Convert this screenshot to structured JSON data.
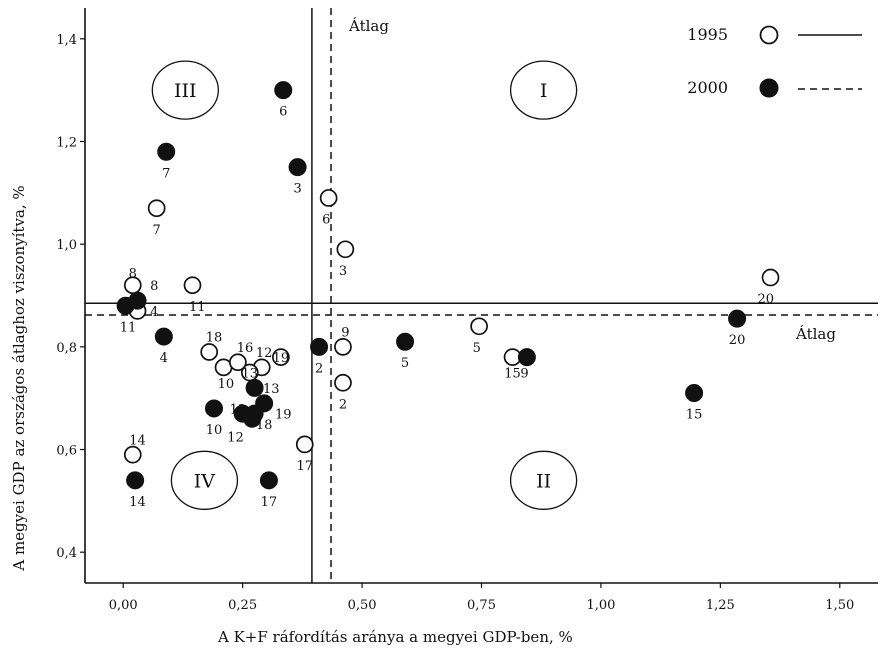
{
  "chart_data": {
    "type": "scatter",
    "xlabel": "A K+F ráfordítás aránya a megyei GDP-ben, %",
    "ylabel": "A megyei GDP az országos átlaghoz viszonyítva, %",
    "xlim": [
      -0.08,
      1.58
    ],
    "ylim": [
      0.34,
      1.46
    ],
    "x_ticks": [
      "0,00",
      "0,25",
      "0,50",
      "0,75",
      "1,00",
      "1,25",
      "1,50"
    ],
    "x_tick_values": [
      0,
      0.25,
      0.5,
      0.75,
      1.0,
      1.25,
      1.5
    ],
    "y_ticks": [
      "0,4",
      "0,6",
      "0,8",
      "1,0",
      "1,2",
      "1,4"
    ],
    "y_tick_values": [
      0.4,
      0.6,
      0.8,
      1.0,
      1.2,
      1.4
    ],
    "grid": false,
    "legend_position": "top-right",
    "average_label": "Átlag",
    "quadrants": [
      {
        "label": "I",
        "x": 0.88,
        "y": 1.3
      },
      {
        "label": "II",
        "x": 0.88,
        "y": 0.54
      },
      {
        "label": "III",
        "x": 0.13,
        "y": 1.3
      },
      {
        "label": "IV",
        "x": 0.17,
        "y": 0.54
      }
    ],
    "series": [
      {
        "name": "1995",
        "marker": "open-circle",
        "line_style": "solid",
        "color": "#111111",
        "average": {
          "x": 0.395,
          "y": 0.885
        },
        "points": [
          {
            "id": "2",
            "x": 0.46,
            "y": 0.73,
            "lx": 0.46,
            "ly": 0.69
          },
          {
            "id": "3",
            "x": 0.465,
            "y": 0.99,
            "lx": 0.46,
            "ly": 0.95
          },
          {
            "id": "4",
            "x": 0.03,
            "y": 0.87,
            "lx": 0.065,
            "ly": 0.87
          },
          {
            "id": "5",
            "x": 0.745,
            "y": 0.84,
            "lx": 0.74,
            "ly": 0.8
          },
          {
            "id": "6",
            "x": 0.43,
            "y": 1.09,
            "lx": 0.425,
            "ly": 1.05
          },
          {
            "id": "7",
            "x": 0.07,
            "y": 1.07,
            "lx": 0.07,
            "ly": 1.03
          },
          {
            "id": "8",
            "x": 0.02,
            "y": 0.92,
            "lx": 0.02,
            "ly": 0.945
          },
          {
            "id": "9",
            "x": 0.46,
            "y": 0.8,
            "lx": 0.465,
            "ly": 0.83
          },
          {
            "id": "10",
            "x": 0.21,
            "y": 0.76,
            "lx": 0.215,
            "ly": 0.73
          },
          {
            "id": "11",
            "x": 0.145,
            "y": 0.92,
            "lx": 0.155,
            "ly": 0.88
          },
          {
            "id": "12",
            "x": 0.29,
            "y": 0.76,
            "lx": 0.295,
            "ly": 0.79
          },
          {
            "id": "13",
            "x": 0.265,
            "y": 0.75,
            "lx": 0.265,
            "ly": 0.75
          },
          {
            "id": "14",
            "x": 0.02,
            "y": 0.59,
            "lx": 0.03,
            "ly": 0.62
          },
          {
            "id": "15",
            "x": 0.815,
            "y": 0.78,
            "lx": 0.815,
            "ly": 0.75
          },
          {
            "id": "16",
            "x": 0.24,
            "y": 0.77,
            "lx": 0.255,
            "ly": 0.8
          },
          {
            "id": "17",
            "x": 0.38,
            "y": 0.61,
            "lx": 0.38,
            "ly": 0.57
          },
          {
            "id": "18",
            "x": 0.18,
            "y": 0.79,
            "lx": 0.19,
            "ly": 0.82
          },
          {
            "id": "19",
            "x": 0.33,
            "y": 0.78,
            "lx": 0.33,
            "ly": 0.78
          },
          {
            "id": "20",
            "x": 1.355,
            "y": 0.935,
            "lx": 1.345,
            "ly": 0.895
          }
        ]
      },
      {
        "name": "2000",
        "marker": "filled-circle",
        "line_style": "dashed",
        "color": "#111111",
        "average": {
          "x": 0.435,
          "y": 0.862
        },
        "points": [
          {
            "id": "2",
            "x": 0.41,
            "y": 0.8,
            "lx": 0.41,
            "ly": 0.76
          },
          {
            "id": "3",
            "x": 0.365,
            "y": 1.15,
            "lx": 0.365,
            "ly": 1.11
          },
          {
            "id": "4",
            "x": 0.085,
            "y": 0.82,
            "lx": 0.085,
            "ly": 0.78
          },
          {
            "id": "5",
            "x": 0.59,
            "y": 0.81,
            "lx": 0.59,
            "ly": 0.77
          },
          {
            "id": "6",
            "x": 0.335,
            "y": 1.3,
            "lx": 0.335,
            "ly": 1.26
          },
          {
            "id": "7",
            "x": 0.09,
            "y": 1.18,
            "lx": 0.09,
            "ly": 1.14
          },
          {
            "id": "8",
            "x": 0.03,
            "y": 0.89,
            "lx": 0.065,
            "ly": 0.92
          },
          {
            "id": "9",
            "x": 0.845,
            "y": 0.78,
            "lx": 0.84,
            "ly": 0.75
          },
          {
            "id": "10",
            "x": 0.19,
            "y": 0.68,
            "lx": 0.19,
            "ly": 0.64
          },
          {
            "id": "11",
            "x": 0.005,
            "y": 0.88,
            "lx": 0.01,
            "ly": 0.84
          },
          {
            "id": "12",
            "x": 0.27,
            "y": 0.66,
            "lx": 0.235,
            "ly": 0.625
          },
          {
            "id": "13",
            "x": 0.275,
            "y": 0.72,
            "lx": 0.31,
            "ly": 0.72
          },
          {
            "id": "13",
            "x": 0.25,
            "y": 0.67,
            "lx": 0.24,
            "ly": 0.68
          },
          {
            "id": "14",
            "x": 0.025,
            "y": 0.54,
            "lx": 0.03,
            "ly": 0.5
          },
          {
            "id": "15",
            "x": 1.195,
            "y": 0.71,
            "lx": 1.195,
            "ly": 0.67
          },
          {
            "id": "17",
            "x": 0.305,
            "y": 0.54,
            "lx": 0.305,
            "ly": 0.5
          },
          {
            "id": "18",
            "x": 0.275,
            "y": 0.67,
            "lx": 0.295,
            "ly": 0.65
          },
          {
            "id": "19",
            "x": 0.295,
            "y": 0.69,
            "lx": 0.335,
            "ly": 0.67
          },
          {
            "id": "20",
            "x": 1.285,
            "y": 0.855,
            "lx": 1.285,
            "ly": 0.815
          }
        ]
      }
    ]
  }
}
